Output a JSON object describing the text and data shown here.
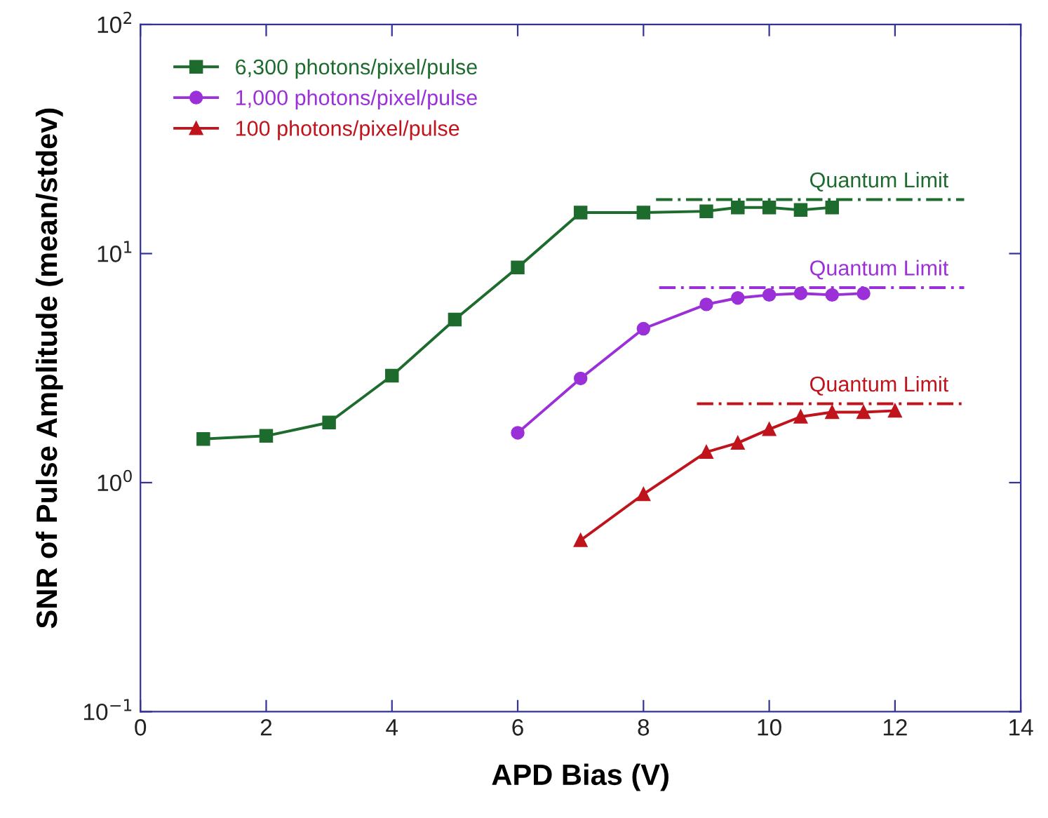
{
  "chart_data": {
    "type": "line",
    "xlabel": "APD Bias (V)",
    "ylabel": "SNR of Pulse Amplitude (mean/stdev)",
    "log": "y",
    "xlim": [
      0,
      14
    ],
    "xticks": [
      0,
      2,
      4,
      6,
      8,
      10,
      12,
      14
    ],
    "ylim": [
      0.1,
      100
    ],
    "yticks": [
      {
        "value": 0.1,
        "label": "10$^{−1}$"
      },
      {
        "value": 1,
        "label": "10$^{0}$"
      },
      {
        "value": 10,
        "label": "10$^{1}$"
      },
      {
        "value": 100,
        "label": "10$^{2}$"
      }
    ],
    "legend": "top left",
    "grid": false,
    "line_style": "solid",
    "series": [
      {
        "name": "6,300 photons/pixel/pulse",
        "color": "#1e6b2e",
        "marker": "square",
        "x": [
          1,
          2,
          3,
          4,
          5,
          6,
          7,
          8,
          9,
          9.5,
          10,
          10.5,
          11
        ],
        "values": [
          1.55,
          1.6,
          1.83,
          2.93,
          5.15,
          8.7,
          15.1,
          15.1,
          15.3,
          15.9,
          15.9,
          15.5,
          15.9
        ]
      },
      {
        "name": "1,000 photons/pixel/pulse",
        "color": "#9b30d9",
        "marker": "circle",
        "x": [
          6,
          7,
          8,
          9,
          9.5,
          10,
          10.5,
          11,
          11.5
        ],
        "values": [
          1.65,
          2.85,
          4.7,
          6.0,
          6.4,
          6.6,
          6.7,
          6.6,
          6.7
        ]
      },
      {
        "name": "100 photons/pixel/pulse",
        "color": "#c0141c",
        "marker": "triangle",
        "x": [
          7,
          8,
          9,
          9.5,
          10,
          10.5,
          11,
          11.5,
          12
        ],
        "values": [
          0.56,
          0.89,
          1.36,
          1.49,
          1.71,
          1.94,
          2.03,
          2.03,
          2.06
        ]
      },
      {
        "name": "Quantum Limit",
        "color": "#1e6b2e",
        "marker": "none",
        "line_style": "dashed",
        "x": [
          8.2,
          13.1
        ],
        "values": [
          17.2,
          17.2
        ]
      },
      {
        "name": "Quantum Limit",
        "color": "#9b30d9",
        "marker": "none",
        "line_style": "dashed",
        "x": [
          8.25,
          13.1
        ],
        "values": [
          7.1,
          7.1
        ]
      },
      {
        "name": "Quantum Limit",
        "color": "#c0141c",
        "marker": "none",
        "line_style": "dashed",
        "x": [
          8.85,
          13.1
        ],
        "values": [
          2.21,
          2.21
        ]
      }
    ]
  }
}
